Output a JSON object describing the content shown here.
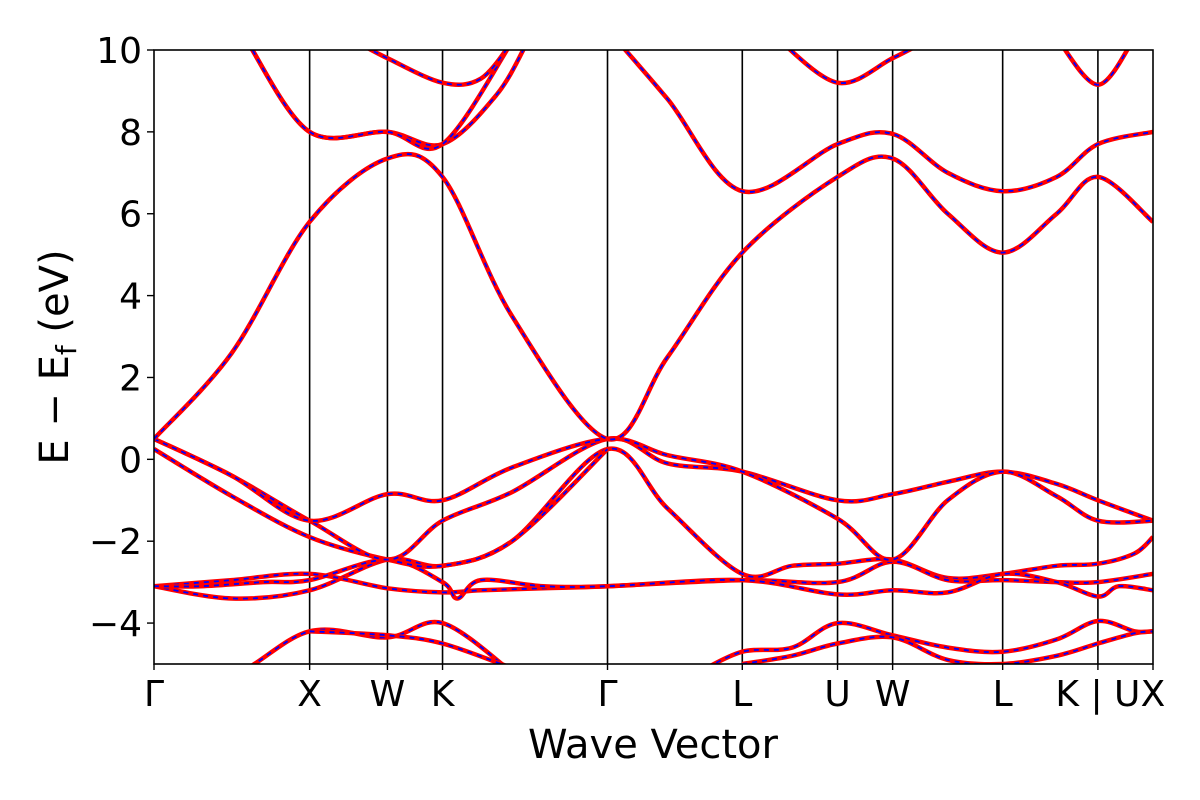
{
  "chart_data": {
    "type": "line",
    "xlabel": "Wave Vector",
    "ylabel": "E − E",
    "ylabel_sub": "f",
    "ylabel_unit": " (eV)",
    "ylim": [
      -5,
      10
    ],
    "yticks": [
      10,
      8,
      6,
      4,
      2,
      0,
      -2,
      -4
    ],
    "ytick_labels": [
      "10",
      "8",
      "6",
      "4",
      "2",
      "0",
      "−2",
      "−4"
    ],
    "kpoints": [
      {
        "label": "Γ",
        "x": 0.0
      },
      {
        "label": "X",
        "x": 1.0
      },
      {
        "label": "W",
        "x": 1.5
      },
      {
        "label": "K",
        "x": 1.854
      },
      {
        "label": "Γ",
        "x": 2.914
      },
      {
        "label": "L",
        "x": 3.78
      },
      {
        "label": "U",
        "x": 4.392
      },
      {
        "label": "W",
        "x": 4.746
      },
      {
        "label": "L",
        "x": 5.453
      },
      {
        "label": "K | U",
        "x": 6.065
      },
      {
        "label": "X",
        "x": 6.419
      }
    ],
    "xlim": [
      0,
      6.419
    ],
    "line_styles": {
      "solid": "#ff0000",
      "dashed": "#0000ff"
    },
    "series": [
      {
        "points": [
          [
            0,
            -5.6
          ],
          [
            0.5,
            -5.3
          ],
          [
            1,
            -4.2
          ],
          [
            1.5,
            -4.35
          ],
          [
            1.854,
            -4.0
          ],
          [
            2.3,
            -5.2
          ]
        ]
      },
      {
        "points": [
          [
            1,
            -4.2
          ],
          [
            1.5,
            -4.3
          ],
          [
            1.854,
            -4.5
          ],
          [
            2.3,
            -5.1
          ]
        ]
      },
      {
        "points": [
          [
            3.5,
            -5.2
          ],
          [
            3.78,
            -4.7
          ],
          [
            4.1,
            -4.6
          ],
          [
            4.392,
            -4.0
          ],
          [
            4.746,
            -4.3
          ],
          [
            5.1,
            -4.6
          ],
          [
            5.453,
            -4.7
          ],
          [
            5.8,
            -4.4
          ],
          [
            6.065,
            -3.95
          ],
          [
            6.3,
            -4.2
          ],
          [
            6.419,
            -4.2
          ]
        ]
      },
      {
        "points": [
          [
            3.78,
            -5.0
          ],
          [
            4.1,
            -4.8
          ],
          [
            4.392,
            -4.5
          ],
          [
            4.746,
            -4.35
          ],
          [
            5.1,
            -4.9
          ],
          [
            5.453,
            -5.0
          ],
          [
            5.8,
            -4.8
          ],
          [
            6.065,
            -4.5
          ],
          [
            6.3,
            -4.25
          ],
          [
            6.419,
            -4.2
          ]
        ]
      },
      {
        "points": [
          [
            0,
            -3.1
          ],
          [
            0.5,
            -3.4
          ],
          [
            1,
            -3.2
          ],
          [
            1.5,
            -2.45
          ],
          [
            1.854,
            -2.6
          ],
          [
            2.3,
            -2.0
          ],
          [
            2.914,
            0.25
          ],
          [
            3.3,
            -1.2
          ],
          [
            3.78,
            -2.8
          ],
          [
            4.1,
            -2.6
          ],
          [
            4.392,
            -2.55
          ],
          [
            4.746,
            -2.45
          ],
          [
            5.1,
            -2.9
          ],
          [
            5.453,
            -2.8
          ],
          [
            5.8,
            -2.6
          ],
          [
            6.065,
            -2.55
          ],
          [
            6.3,
            -2.3
          ],
          [
            6.419,
            -1.9
          ]
        ]
      },
      {
        "points": [
          [
            0,
            -3.1
          ],
          [
            0.5,
            -2.95
          ],
          [
            1,
            -2.8
          ],
          [
            1.5,
            -3.15
          ],
          [
            1.854,
            -3.25
          ],
          [
            2.1,
            -3.2
          ],
          [
            2.5,
            -3.15
          ],
          [
            2.914,
            -3.1
          ],
          [
            3.78,
            -2.95
          ],
          [
            4.392,
            -3.0
          ],
          [
            4.746,
            -2.5
          ],
          [
            5.1,
            -2.95
          ],
          [
            5.453,
            -2.95
          ],
          [
            5.8,
            -3.0
          ],
          [
            6.065,
            -3.0
          ],
          [
            6.419,
            -2.8
          ]
        ]
      },
      {
        "points": [
          [
            0,
            -3.1
          ],
          [
            0.3,
            -3.1
          ],
          [
            0.7,
            -3.0
          ],
          [
            1,
            -2.95
          ],
          [
            1.5,
            -2.45
          ],
          [
            1.854,
            -3.0
          ],
          [
            1.95,
            -3.4
          ],
          [
            2.1,
            -2.95
          ],
          [
            2.5,
            -3.1
          ],
          [
            2.914,
            -3.1
          ],
          [
            3.78,
            -2.95
          ],
          [
            4.392,
            -3.3
          ],
          [
            4.746,
            -3.2
          ],
          [
            5.1,
            -3.25
          ],
          [
            5.453,
            -2.8
          ],
          [
            5.8,
            -3.0
          ],
          [
            6.065,
            -3.35
          ],
          [
            6.2,
            -3.1
          ],
          [
            6.419,
            -3.2
          ]
        ]
      },
      {
        "points": [
          [
            0,
            0.25
          ],
          [
            0.5,
            -0.9
          ],
          [
            1,
            -1.9
          ],
          [
            1.5,
            -2.45
          ],
          [
            1.854,
            -2.6
          ],
          [
            2.3,
            -2.0
          ],
          [
            2.914,
            0.25
          ]
        ]
      },
      {
        "points": [
          [
            0,
            0.5
          ],
          [
            0.5,
            -0.4
          ],
          [
            1,
            -1.5
          ],
          [
            1.5,
            -2.45
          ],
          [
            1.854,
            -1.5
          ],
          [
            2.3,
            -0.8
          ],
          [
            2.914,
            0.5
          ],
          [
            3.3,
            -0.1
          ],
          [
            3.78,
            -0.3
          ],
          [
            4.392,
            -1.0
          ],
          [
            4.746,
            -0.85
          ],
          [
            5.1,
            -0.55
          ],
          [
            5.453,
            -0.3
          ],
          [
            5.8,
            -0.6
          ],
          [
            6.065,
            -1.0
          ],
          [
            6.419,
            -1.5
          ]
        ]
      },
      {
        "points": [
          [
            0,
            0.5
          ],
          [
            0.5,
            -0.4
          ],
          [
            1,
            -1.5
          ],
          [
            1.5,
            -0.85
          ],
          [
            1.854,
            -1.0
          ],
          [
            2.3,
            -0.2
          ],
          [
            2.914,
            0.5
          ],
          [
            3.3,
            0.1
          ],
          [
            3.78,
            -0.3
          ],
          [
            4.392,
            -1.45
          ],
          [
            4.746,
            -2.45
          ],
          [
            5.1,
            -1.0
          ],
          [
            5.453,
            -0.3
          ],
          [
            5.8,
            -0.9
          ],
          [
            6.065,
            -1.5
          ],
          [
            6.419,
            -1.5
          ]
        ]
      },
      {
        "points": [
          [
            0,
            0.5
          ],
          [
            0.5,
            2.6
          ],
          [
            1,
            5.8
          ],
          [
            1.5,
            7.35
          ],
          [
            1.854,
            6.9
          ],
          [
            2.3,
            3.5
          ],
          [
            2.914,
            0.5
          ],
          [
            3.3,
            2.5
          ],
          [
            3.78,
            5.05
          ],
          [
            4.392,
            6.9
          ],
          [
            4.746,
            7.35
          ],
          [
            5.1,
            6.0
          ],
          [
            5.453,
            5.05
          ],
          [
            5.8,
            6.0
          ],
          [
            6.065,
            6.9
          ],
          [
            6.419,
            5.8
          ]
        ]
      },
      {
        "points": [
          [
            0.6,
            10.2
          ],
          [
            1,
            8.0
          ],
          [
            1.5,
            8.0
          ],
          [
            1.854,
            7.7
          ],
          [
            2.2,
            8.9
          ],
          [
            2.4,
            10.2
          ]
        ]
      },
      {
        "points": [
          [
            0.6,
            10.2
          ],
          [
            1,
            8.0
          ],
          [
            1.5,
            8.0
          ],
          [
            1.854,
            7.7
          ],
          [
            2.3,
            10.2
          ]
        ]
      },
      {
        "points": [
          [
            2.914,
            10.5
          ],
          [
            3.3,
            8.8
          ],
          [
            3.78,
            6.55
          ],
          [
            4.392,
            7.7
          ],
          [
            4.746,
            7.95
          ],
          [
            5.1,
            7.0
          ],
          [
            5.453,
            6.55
          ],
          [
            5.8,
            6.9
          ],
          [
            6.065,
            7.7
          ],
          [
            6.419,
            8.0
          ]
        ]
      },
      {
        "points": [
          [
            4.0,
            10.3
          ],
          [
            4.392,
            9.2
          ],
          [
            4.746,
            9.8
          ],
          [
            5.0,
            10.3
          ]
        ]
      },
      {
        "points": [
          [
            5.8,
            10.3
          ],
          [
            6.065,
            9.15
          ],
          [
            6.3,
            10.3
          ]
        ]
      },
      {
        "points": [
          [
            1.3,
            10.2
          ],
          [
            1.5,
            9.8
          ],
          [
            1.854,
            9.2
          ],
          [
            2.1,
            9.3
          ],
          [
            2.3,
            10.2
          ]
        ]
      }
    ]
  }
}
